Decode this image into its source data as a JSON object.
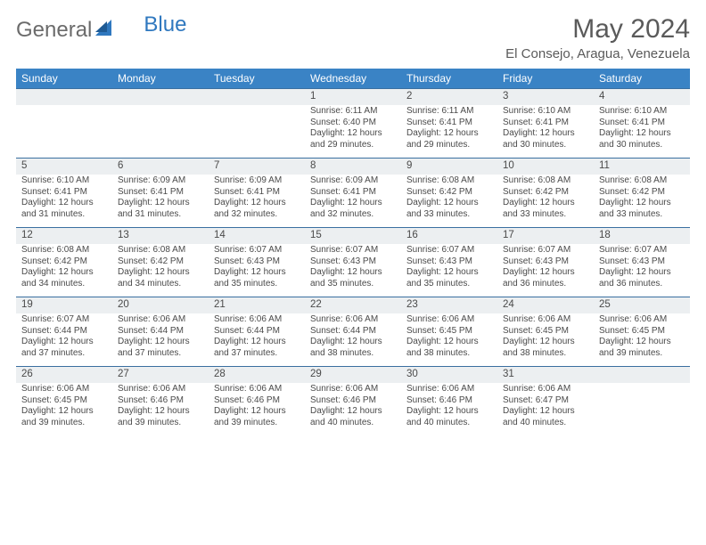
{
  "logo": {
    "general": "General",
    "blue": "Blue",
    "shape_color": "#2f78bf"
  },
  "title": "May 2024",
  "location": "El Consejo, Aragua, Venezuela",
  "colors": {
    "header_bg": "#3a83c5",
    "header_text": "#ffffff",
    "daynum_bg": "#eceff1",
    "row_border": "#3a6fa0",
    "body_text": "#4a4a4a",
    "title_text": "#5a5a5a"
  },
  "typography": {
    "title_fontsize": 30,
    "location_fontsize": 15,
    "dayhead_fontsize": 12,
    "daynum_fontsize": 11.5,
    "detail_fontsize": 10
  },
  "day_headers": [
    "Sunday",
    "Monday",
    "Tuesday",
    "Wednesday",
    "Thursday",
    "Friday",
    "Saturday"
  ],
  "weeks": [
    [
      null,
      null,
      null,
      {
        "n": "1",
        "sr": "6:11 AM",
        "ss": "6:40 PM",
        "dl": "12 hours and 29 minutes."
      },
      {
        "n": "2",
        "sr": "6:11 AM",
        "ss": "6:41 PM",
        "dl": "12 hours and 29 minutes."
      },
      {
        "n": "3",
        "sr": "6:10 AM",
        "ss": "6:41 PM",
        "dl": "12 hours and 30 minutes."
      },
      {
        "n": "4",
        "sr": "6:10 AM",
        "ss": "6:41 PM",
        "dl": "12 hours and 30 minutes."
      }
    ],
    [
      {
        "n": "5",
        "sr": "6:10 AM",
        "ss": "6:41 PM",
        "dl": "12 hours and 31 minutes."
      },
      {
        "n": "6",
        "sr": "6:09 AM",
        "ss": "6:41 PM",
        "dl": "12 hours and 31 minutes."
      },
      {
        "n": "7",
        "sr": "6:09 AM",
        "ss": "6:41 PM",
        "dl": "12 hours and 32 minutes."
      },
      {
        "n": "8",
        "sr": "6:09 AM",
        "ss": "6:41 PM",
        "dl": "12 hours and 32 minutes."
      },
      {
        "n": "9",
        "sr": "6:08 AM",
        "ss": "6:42 PM",
        "dl": "12 hours and 33 minutes."
      },
      {
        "n": "10",
        "sr": "6:08 AM",
        "ss": "6:42 PM",
        "dl": "12 hours and 33 minutes."
      },
      {
        "n": "11",
        "sr": "6:08 AM",
        "ss": "6:42 PM",
        "dl": "12 hours and 33 minutes."
      }
    ],
    [
      {
        "n": "12",
        "sr": "6:08 AM",
        "ss": "6:42 PM",
        "dl": "12 hours and 34 minutes."
      },
      {
        "n": "13",
        "sr": "6:08 AM",
        "ss": "6:42 PM",
        "dl": "12 hours and 34 minutes."
      },
      {
        "n": "14",
        "sr": "6:07 AM",
        "ss": "6:43 PM",
        "dl": "12 hours and 35 minutes."
      },
      {
        "n": "15",
        "sr": "6:07 AM",
        "ss": "6:43 PM",
        "dl": "12 hours and 35 minutes."
      },
      {
        "n": "16",
        "sr": "6:07 AM",
        "ss": "6:43 PM",
        "dl": "12 hours and 35 minutes."
      },
      {
        "n": "17",
        "sr": "6:07 AM",
        "ss": "6:43 PM",
        "dl": "12 hours and 36 minutes."
      },
      {
        "n": "18",
        "sr": "6:07 AM",
        "ss": "6:43 PM",
        "dl": "12 hours and 36 minutes."
      }
    ],
    [
      {
        "n": "19",
        "sr": "6:07 AM",
        "ss": "6:44 PM",
        "dl": "12 hours and 37 minutes."
      },
      {
        "n": "20",
        "sr": "6:06 AM",
        "ss": "6:44 PM",
        "dl": "12 hours and 37 minutes."
      },
      {
        "n": "21",
        "sr": "6:06 AM",
        "ss": "6:44 PM",
        "dl": "12 hours and 37 minutes."
      },
      {
        "n": "22",
        "sr": "6:06 AM",
        "ss": "6:44 PM",
        "dl": "12 hours and 38 minutes."
      },
      {
        "n": "23",
        "sr": "6:06 AM",
        "ss": "6:45 PM",
        "dl": "12 hours and 38 minutes."
      },
      {
        "n": "24",
        "sr": "6:06 AM",
        "ss": "6:45 PM",
        "dl": "12 hours and 38 minutes."
      },
      {
        "n": "25",
        "sr": "6:06 AM",
        "ss": "6:45 PM",
        "dl": "12 hours and 39 minutes."
      }
    ],
    [
      {
        "n": "26",
        "sr": "6:06 AM",
        "ss": "6:45 PM",
        "dl": "12 hours and 39 minutes."
      },
      {
        "n": "27",
        "sr": "6:06 AM",
        "ss": "6:46 PM",
        "dl": "12 hours and 39 minutes."
      },
      {
        "n": "28",
        "sr": "6:06 AM",
        "ss": "6:46 PM",
        "dl": "12 hours and 39 minutes."
      },
      {
        "n": "29",
        "sr": "6:06 AM",
        "ss": "6:46 PM",
        "dl": "12 hours and 40 minutes."
      },
      {
        "n": "30",
        "sr": "6:06 AM",
        "ss": "6:46 PM",
        "dl": "12 hours and 40 minutes."
      },
      {
        "n": "31",
        "sr": "6:06 AM",
        "ss": "6:47 PM",
        "dl": "12 hours and 40 minutes."
      },
      null
    ]
  ],
  "labels": {
    "sunrise": "Sunrise: ",
    "sunset": "Sunset: ",
    "daylight": "Daylight: "
  }
}
